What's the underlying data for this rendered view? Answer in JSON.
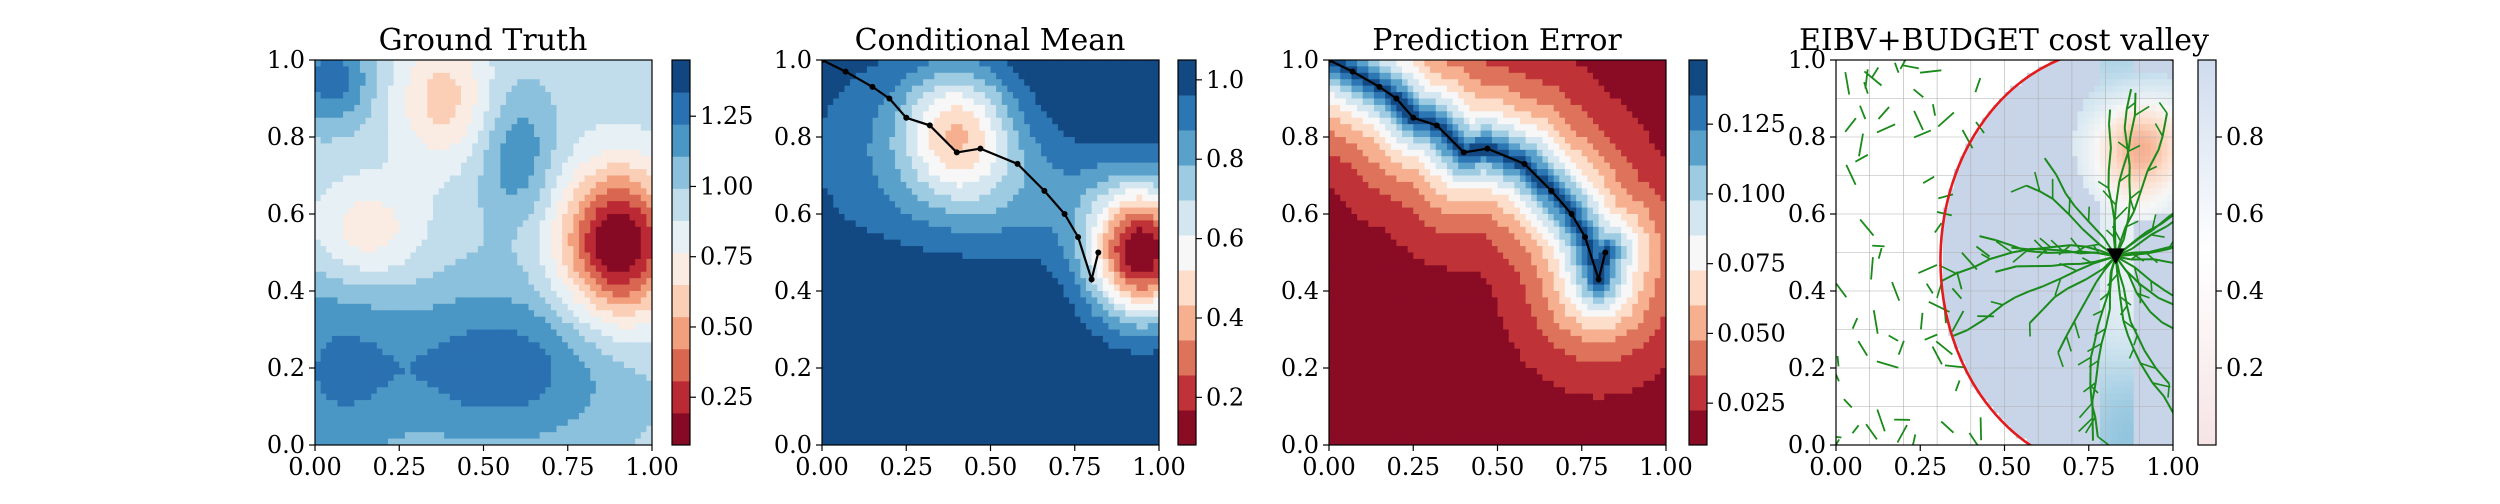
{
  "figure": {
    "panel_count": 4
  },
  "chart_data": [
    {
      "type": "heatmap",
      "title": "Ground Truth",
      "xlabel": "",
      "ylabel": "",
      "xlim": [
        0.0,
        1.0
      ],
      "ylim": [
        0.0,
        1.0
      ],
      "xticks": [
        "0.00",
        "0.25",
        "0.50",
        "0.75",
        "1.00"
      ],
      "yticks": [
        "0.0",
        "0.2",
        "0.4",
        "0.6",
        "0.8",
        "1.0"
      ],
      "colormap": "RdBu",
      "colorbar_ticks": [
        "0.25",
        "0.50",
        "0.75",
        "1.00",
        "1.25"
      ],
      "colorbar_values": [
        0.25,
        0.5,
        0.75,
        1.0,
        1.25
      ],
      "colorbar_range": [
        0.08,
        1.45
      ],
      "levels": 12,
      "field": {
        "base": 0.95,
        "bumps": [
          {
            "x": 0.9,
            "y": 0.52,
            "sx": 0.12,
            "sy": 0.14,
            "amp": -0.9
          },
          {
            "x": 0.38,
            "y": 0.9,
            "sx": 0.1,
            "sy": 0.12,
            "amp": -0.35
          },
          {
            "x": 0.55,
            "y": 0.2,
            "sx": 0.25,
            "sy": 0.15,
            "amp": 0.35
          },
          {
            "x": 0.05,
            "y": 0.2,
            "sx": 0.15,
            "sy": 0.22,
            "amp": 0.25
          },
          {
            "x": 0.15,
            "y": 0.55,
            "sx": 0.12,
            "sy": 0.1,
            "amp": -0.3
          },
          {
            "x": 0.6,
            "y": 0.75,
            "sx": 0.08,
            "sy": 0.12,
            "amp": 0.25
          },
          {
            "x": 0.05,
            "y": 0.95,
            "sx": 0.08,
            "sy": 0.08,
            "amp": 0.35
          }
        ]
      }
    },
    {
      "type": "heatmap",
      "title": "Conditional Mean",
      "xlabel": "",
      "ylabel": "",
      "xlim": [
        0.0,
        1.0
      ],
      "ylim": [
        0.0,
        1.0
      ],
      "xticks": [
        "0.00",
        "0.25",
        "0.50",
        "0.75",
        "1.00"
      ],
      "yticks": [
        "0.0",
        "0.2",
        "0.4",
        "0.6",
        "0.8",
        "1.0"
      ],
      "colormap": "RdBu",
      "colorbar_ticks": [
        "0.2",
        "0.4",
        "0.6",
        "0.8",
        "1.0"
      ],
      "colorbar_values": [
        0.2,
        0.4,
        0.6,
        0.8,
        1.0
      ],
      "colorbar_range": [
        0.08,
        1.05
      ],
      "levels": 11,
      "field": {
        "base": 1.05,
        "bumps": [
          {
            "x": 0.95,
            "y": 0.5,
            "sx": 0.11,
            "sy": 0.12,
            "amp": -0.95
          },
          {
            "x": 0.4,
            "y": 0.82,
            "sx": 0.12,
            "sy": 0.12,
            "amp": -0.55
          },
          {
            "x": 0.55,
            "y": 0.65,
            "sx": 0.25,
            "sy": 0.12,
            "amp": -0.2
          },
          {
            "x": 0.1,
            "y": 0.8,
            "sx": 0.15,
            "sy": 0.2,
            "amp": -0.1
          }
        ]
      },
      "path": {
        "x": [
          0.0,
          0.07,
          0.15,
          0.2,
          0.25,
          0.32,
          0.4,
          0.47,
          0.58,
          0.66,
          0.72,
          0.76,
          0.8,
          0.82
        ],
        "y": [
          1.0,
          0.97,
          0.93,
          0.9,
          0.85,
          0.83,
          0.76,
          0.77,
          0.73,
          0.66,
          0.6,
          0.54,
          0.43,
          0.5
        ]
      }
    },
    {
      "type": "heatmap",
      "title": "Prediction Error",
      "xlabel": "",
      "ylabel": "",
      "xlim": [
        0.0,
        1.0
      ],
      "ylim": [
        0.0,
        1.0
      ],
      "xticks": [
        "0.00",
        "0.25",
        "0.50",
        "0.75",
        "1.00"
      ],
      "yticks": [
        "0.0",
        "0.2",
        "0.4",
        "0.6",
        "0.8",
        "1.0"
      ],
      "colormap": "RdBu",
      "colorbar_ticks": [
        "0.025",
        "0.050",
        "0.075",
        "0.100",
        "0.125"
      ],
      "colorbar_values": [
        0.025,
        0.05,
        0.075,
        0.1,
        0.125
      ],
      "colorbar_range": [
        0.01,
        0.148
      ],
      "levels": 11,
      "distance_field": {
        "max": 0.148,
        "min": 0.01,
        "scale": 0.28
      },
      "path": {
        "x": [
          0.0,
          0.07,
          0.15,
          0.2,
          0.25,
          0.32,
          0.4,
          0.47,
          0.58,
          0.66,
          0.72,
          0.76,
          0.8,
          0.82
        ],
        "y": [
          1.0,
          0.97,
          0.93,
          0.9,
          0.85,
          0.83,
          0.76,
          0.77,
          0.73,
          0.66,
          0.6,
          0.54,
          0.43,
          0.5
        ]
      }
    },
    {
      "type": "heatmap",
      "title": "EIBV+BUDGET cost valley",
      "xlabel": "",
      "ylabel": "",
      "xlim": [
        0.0,
        1.0
      ],
      "ylim": [
        0.0,
        1.0
      ],
      "xticks": [
        "0.00",
        "0.25",
        "0.50",
        "0.75",
        "1.00"
      ],
      "yticks": [
        "0.0",
        "0.2",
        "0.4",
        "0.6",
        "0.8",
        "1.0"
      ],
      "colormap": "RdBu",
      "colorbar_ticks": [
        "0.2",
        "0.4",
        "0.6",
        "0.8"
      ],
      "colorbar_values": [
        0.2,
        0.4,
        0.6,
        0.8
      ],
      "colorbar_range": [
        0.0,
        1.0
      ],
      "budget_ellipse": {
        "cx": 0.83,
        "cy": 0.48,
        "rx": 0.52,
        "ry": 0.55
      },
      "current_location": {
        "x": 0.83,
        "y": 0.49
      },
      "tree_color": "#1a8a1a",
      "boundary_color": "#e41a1c"
    }
  ]
}
